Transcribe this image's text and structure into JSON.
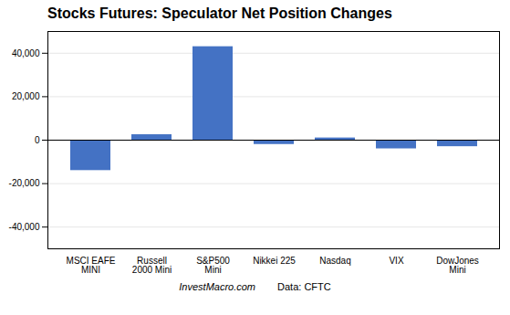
{
  "chart_data": {
    "type": "bar",
    "title": "Stocks Futures: Speculator Net Position Changes",
    "categories": [
      "MSCI EAFE\nMINI",
      "Russell\n2000 Mini",
      "S&P500\nMini",
      "Nikkei 225",
      "Nasdaq",
      "VIX",
      "DowJones\nMini"
    ],
    "values": [
      -14000,
      2500,
      43000,
      -2000,
      1000,
      -4000,
      -3000
    ],
    "color": "#4472c4",
    "ylim": [
      -50000,
      50000
    ],
    "yticks": [
      {
        "value": -40000,
        "label": "-40,000"
      },
      {
        "value": -20000,
        "label": "-20,000"
      },
      0,
      {
        "value": 20000,
        "label": "20,000"
      },
      {
        "value": 40000,
        "label": "40,000"
      }
    ],
    "grid": true,
    "annotations": [
      "InvestMacro.com",
      "Data: CFTC"
    ]
  }
}
